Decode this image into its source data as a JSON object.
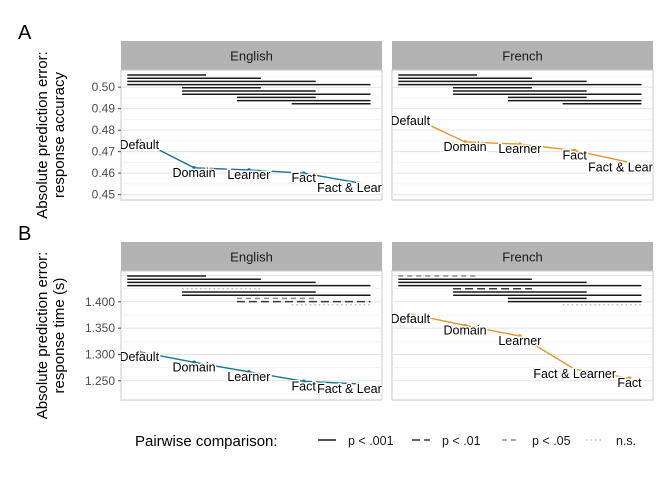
{
  "chart_data": [
    {
      "type": "line",
      "panel_letter": "A",
      "ylabel_lines": [
        "Absolute prediction error:",
        "response accuracy"
      ],
      "yticks": [
        "0.45",
        "0.46",
        "0.47",
        "0.48",
        "0.49",
        "0.50"
      ],
      "ylim": [
        0.4475,
        0.508
      ],
      "grid": true,
      "facets": [
        {
          "title": "English",
          "color": "#1a7395",
          "points": [
            {
              "label": "Default",
              "x": 1.0,
              "y": 0.4755
            },
            {
              "label": "Domain",
              "x": 2.0,
              "y": 0.4625
            },
            {
              "label": "Learner",
              "x": 3.0,
              "y": 0.4615
            },
            {
              "label": "Fact",
              "x": 4.0,
              "y": 0.46
            },
            {
              "label": "Fact & Learner",
              "x": 5.0,
              "y": 0.4555
            }
          ],
          "comparisons": [
            {
              "from": 1,
              "to": 2,
              "sig": "p < .001"
            },
            {
              "from": 1,
              "to": 3,
              "sig": "p < .001"
            },
            {
              "from": 1,
              "to": 4,
              "sig": "p < .001"
            },
            {
              "from": 1,
              "to": 5,
              "sig": "p < .001"
            },
            {
              "from": 2,
              "to": 3,
              "sig": "p < .001"
            },
            {
              "from": 2,
              "to": 4,
              "sig": "p < .001"
            },
            {
              "from": 2,
              "to": 5,
              "sig": "p < .001"
            },
            {
              "from": 3,
              "to": 4,
              "sig": "p < .001"
            },
            {
              "from": 3,
              "to": 5,
              "sig": "p < .001"
            },
            {
              "from": 4,
              "to": 5,
              "sig": "p < .001"
            }
          ]
        },
        {
          "title": "French",
          "color": "#e0962c",
          "points": [
            {
              "label": "Default",
              "x": 1.0,
              "y": 0.4865
            },
            {
              "label": "Domain",
              "x": 2.0,
              "y": 0.4745
            },
            {
              "label": "Learner",
              "x": 3.0,
              "y": 0.4735
            },
            {
              "label": "Fact",
              "x": 4.0,
              "y": 0.4705
            },
            {
              "label": "Fact & Learner",
              "x": 5.0,
              "y": 0.465
            }
          ],
          "comparisons": [
            {
              "from": 1,
              "to": 2,
              "sig": "p < .001"
            },
            {
              "from": 1,
              "to": 3,
              "sig": "p < .001"
            },
            {
              "from": 1,
              "to": 4,
              "sig": "p < .001"
            },
            {
              "from": 1,
              "to": 5,
              "sig": "p < .001"
            },
            {
              "from": 2,
              "to": 3,
              "sig": "p < .001"
            },
            {
              "from": 2,
              "to": 4,
              "sig": "p < .001"
            },
            {
              "from": 2,
              "to": 5,
              "sig": "p < .001"
            },
            {
              "from": 3,
              "to": 4,
              "sig": "p < .001"
            },
            {
              "from": 3,
              "to": 5,
              "sig": "p < .001"
            },
            {
              "from": 4,
              "to": 5,
              "sig": "p < .001"
            }
          ]
        }
      ]
    },
    {
      "type": "line",
      "panel_letter": "B",
      "ylabel_lines": [
        "Absolute prediction error:",
        "response time (s)"
      ],
      "yticks": [
        "1.250",
        "1.300",
        "1.350",
        "1.400"
      ],
      "ylim": [
        1.2135,
        1.4585
      ],
      "grid": true,
      "facets": [
        {
          "title": "English",
          "color": "#1a7395",
          "points": [
            {
              "label": "Default",
              "x": 1.0,
              "y": 1.305
            },
            {
              "label": "Domain",
              "x": 2.0,
              "y": 1.285
            },
            {
              "label": "Learner",
              "x": 3.0,
              "y": 1.267
            },
            {
              "label": "Fact",
              "x": 4.0,
              "y": 1.249
            },
            {
              "label": "Fact & Learner",
              "x": 5.0,
              "y": 1.244
            }
          ],
          "comparisons": [
            {
              "from": 1,
              "to": 2,
              "sig": "p < .001"
            },
            {
              "from": 1,
              "to": 3,
              "sig": "p < .001"
            },
            {
              "from": 1,
              "to": 4,
              "sig": "p < .001"
            },
            {
              "from": 1,
              "to": 5,
              "sig": "p < .001"
            },
            {
              "from": 2,
              "to": 3,
              "sig": "n.s."
            },
            {
              "from": 2,
              "to": 4,
              "sig": "p < .001"
            },
            {
              "from": 2,
              "to": 5,
              "sig": "p < .001"
            },
            {
              "from": 3,
              "to": 4,
              "sig": "p < .05"
            },
            {
              "from": 3,
              "to": 5,
              "sig": "p < .01"
            },
            {
              "from": 4,
              "to": 5,
              "sig": "n.s."
            }
          ]
        },
        {
          "title": "French",
          "color": "#e0962c",
          "points": [
            {
              "label": "Default",
              "x": 1.0,
              "y": 1.377
            },
            {
              "label": "Domain",
              "x": 2.0,
              "y": 1.355
            },
            {
              "label": "Learner",
              "x": 3.0,
              "y": 1.335
            },
            {
              "label": "Fact & Learner",
              "x": 4.0,
              "y": 1.272
            },
            {
              "label": "Fact",
              "x": 5.0,
              "y": 1.255
            }
          ],
          "comparisons": [
            {
              "from": 1,
              "to": 2,
              "sig": "p < .05"
            },
            {
              "from": 1,
              "to": 3,
              "sig": "p < .001"
            },
            {
              "from": 1,
              "to": 4,
              "sig": "p < .001"
            },
            {
              "from": 1,
              "to": 5,
              "sig": "p < .001"
            },
            {
              "from": 2,
              "to": 3,
              "sig": "p < .01"
            },
            {
              "from": 2,
              "to": 4,
              "sig": "p < .001"
            },
            {
              "from": 2,
              "to": 5,
              "sig": "p < .001"
            },
            {
              "from": 3,
              "to": 4,
              "sig": "p < .001"
            },
            {
              "from": 3,
              "to": 5,
              "sig": "p < .001"
            },
            {
              "from": 4,
              "to": 5,
              "sig": "n.s."
            }
          ]
        }
      ]
    }
  ],
  "legend": {
    "title": "Pairwise comparison:",
    "items": [
      {
        "label": "p < .001",
        "style": "solid"
      },
      {
        "label": "p < .01",
        "style": "longdash"
      },
      {
        "label": "p < .05",
        "style": "dash"
      },
      {
        "label": "n.s.",
        "style": "dotted"
      }
    ]
  }
}
